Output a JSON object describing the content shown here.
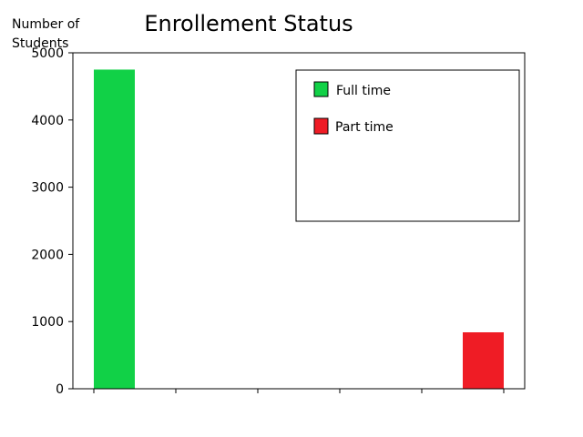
{
  "chart_data": {
    "type": "bar",
    "title": "Enrollement Status",
    "ylabel_lines": [
      "Number of",
      "Students"
    ],
    "xlabel": "",
    "ylim": [
      0,
      5000
    ],
    "yticks": [
      0,
      1000,
      2000,
      3000,
      4000,
      5000
    ],
    "x_tick_count": 6,
    "grid": false,
    "legend_position": "top-right",
    "series": [
      {
        "name": "Full time",
        "value": 4750,
        "color": "#11d147"
      },
      {
        "name": "Part time",
        "value": 840,
        "color": "#ef1c25"
      }
    ]
  }
}
